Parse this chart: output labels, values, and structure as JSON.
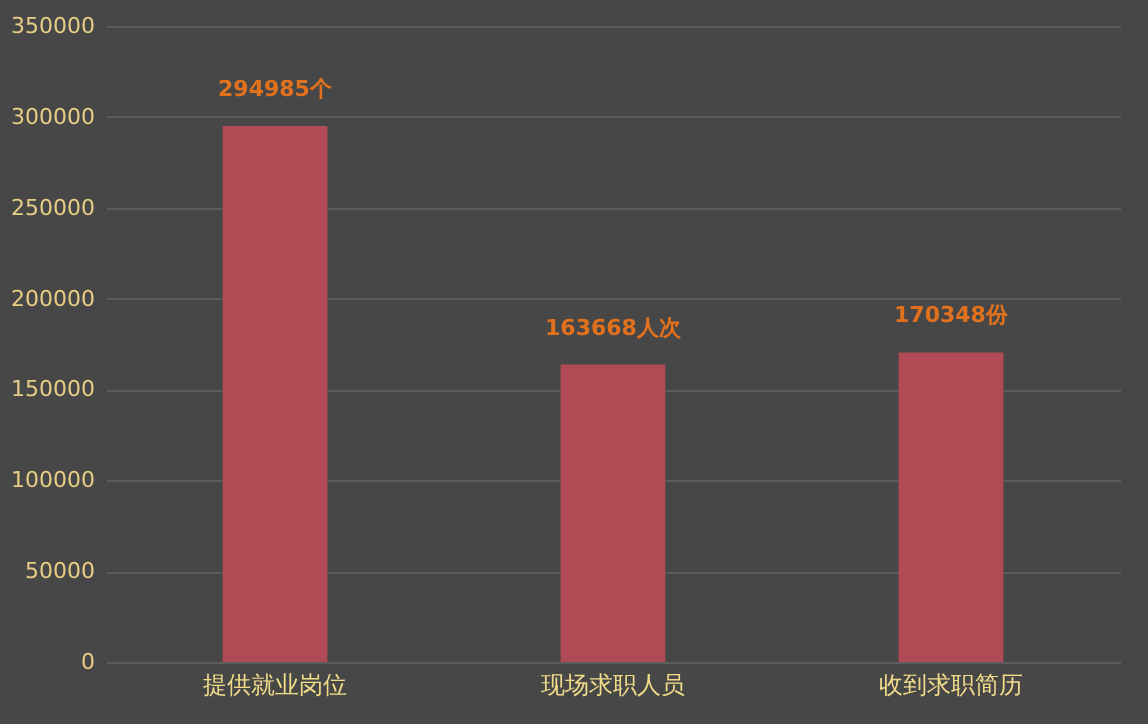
{
  "chart_data": {
    "type": "bar",
    "categories": [
      "提供就业岗位",
      "现场求职人员",
      "收到求职简历"
    ],
    "values": [
      294985,
      163668,
      170348
    ],
    "value_labels": [
      "294985个",
      "163668人次",
      "170348份"
    ],
    "color": "#b04b55",
    "ylim": [
      0,
      350000
    ],
    "yticks": [
      0,
      50000,
      100000,
      150000,
      200000,
      250000,
      300000,
      350000
    ],
    "grid": "y"
  }
}
